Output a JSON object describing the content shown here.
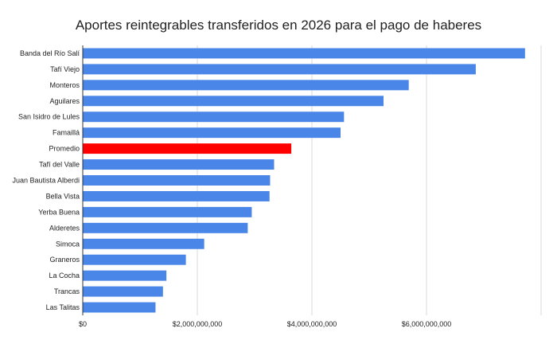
{
  "chart_data": {
    "type": "bar",
    "orientation": "horizontal",
    "title": "Aportes reintegrables transferidos en 2026 para el pago de haberes",
    "xlabel": "",
    "ylabel": "",
    "categories": [
      "Banda del Río Salí",
      "Tafí Viejo",
      "Monteros",
      "Aguilares",
      "San Isidro de Lules",
      "Famaillá",
      "Promedio",
      "Tafí del Valle",
      "Juan Bautista Alberdi",
      "Bella Vista",
      "Yerba Buena",
      "Alderetes",
      "Simoca",
      "Graneros",
      "La Cocha",
      "Trancas",
      "Las Talitas"
    ],
    "values": [
      7720000000,
      6860000000,
      5690000000,
      5250000000,
      4560000000,
      4500000000,
      3640000000,
      3340000000,
      3270000000,
      3260000000,
      2950000000,
      2880000000,
      2120000000,
      1800000000,
      1460000000,
      1400000000,
      1270000000
    ],
    "xlim": [
      0,
      8000000000
    ],
    "xticks": [
      0,
      2000000000,
      4000000000,
      6000000000
    ],
    "xtick_labels": [
      "$0",
      "$2,000,000,000",
      "$4,000,000,000",
      "$6,000,000,000"
    ],
    "grid": true,
    "colors": {
      "default": "#4a86e8",
      "highlight": "#ff0000"
    },
    "highlight_category": "Promedio"
  }
}
